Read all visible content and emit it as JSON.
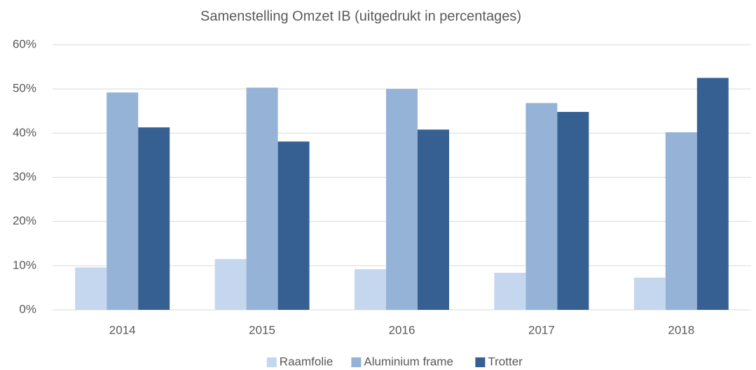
{
  "chart_data": {
    "type": "bar",
    "title": "Samenstelling Omzet IB (uitgedrukt in percentages)",
    "categories": [
      "2014",
      "2015",
      "2016",
      "2017",
      "2018"
    ],
    "series": [
      {
        "name": "Raamfolie",
        "color": "#c5d7ef",
        "values": [
          9.6,
          11.5,
          9.2,
          8.4,
          7.3
        ]
      },
      {
        "name": "Aluminium frame",
        "color": "#95b3d7",
        "values": [
          49.2,
          50.3,
          50.0,
          46.8,
          40.2
        ]
      },
      {
        "name": "Trotter",
        "color": "#366092",
        "values": [
          41.3,
          38.1,
          40.8,
          44.8,
          52.5
        ]
      }
    ],
    "ylim": [
      0,
      60
    ],
    "yticks": [
      {
        "value": 0,
        "label": "0%"
      },
      {
        "value": 10,
        "label": "10%"
      },
      {
        "value": 20,
        "label": "20%"
      },
      {
        "value": 30,
        "label": "30%"
      },
      {
        "value": 40,
        "label": "40%"
      },
      {
        "value": 50,
        "label": "50%"
      },
      {
        "value": 60,
        "label": "60%"
      }
    ],
    "grid": true,
    "legend": "bottom"
  }
}
